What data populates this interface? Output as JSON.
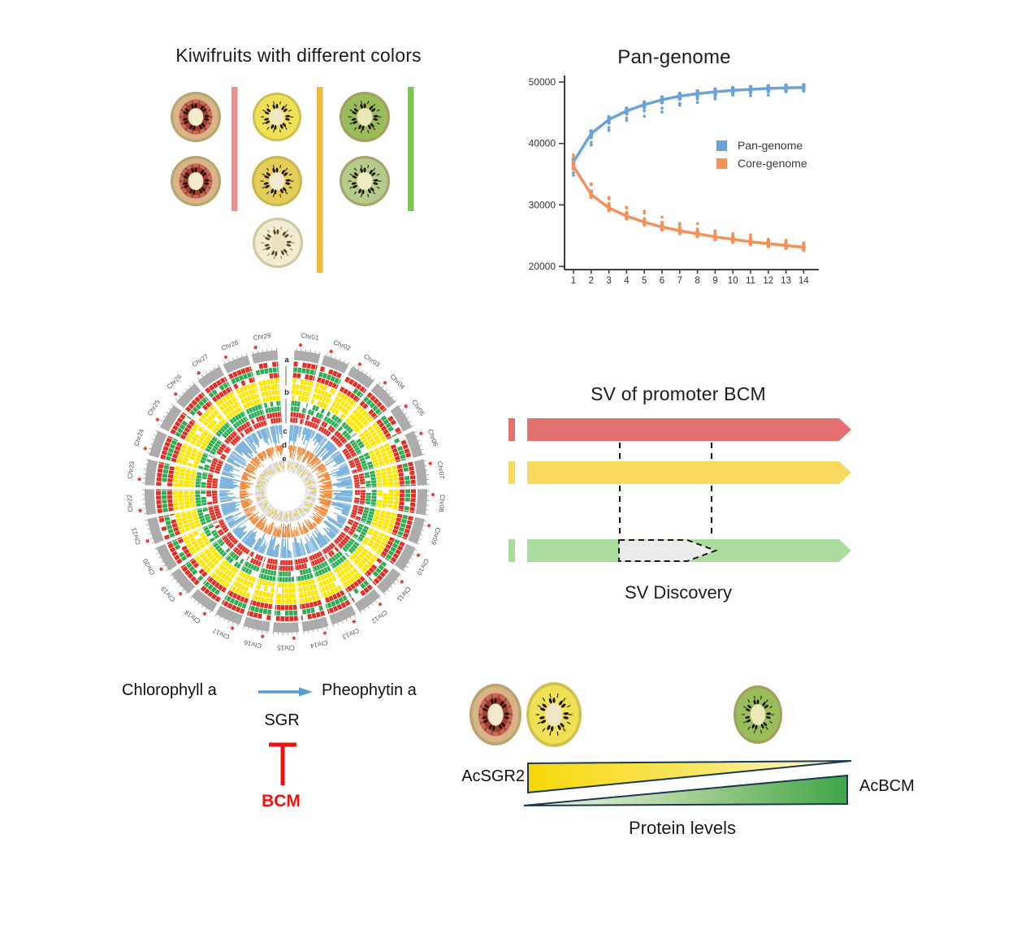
{
  "kiwifruit_panel": {
    "title": "Kiwifruits with different colors",
    "groups": [
      {
        "name": "red-fleshed",
        "bar_color": "#ED8E8E",
        "fruit_count": 2
      },
      {
        "name": "yellow-fleshed",
        "bar_color": "#EDB93F",
        "fruit_count": 3
      },
      {
        "name": "green-fleshed",
        "bar_color": "#7DC356",
        "fruit_count": 2
      }
    ]
  },
  "chart_data": {
    "type": "line",
    "title": "Pan-genome",
    "x": [
      1,
      2,
      3,
      4,
      5,
      6,
      7,
      8,
      9,
      10,
      11,
      12,
      13,
      14
    ],
    "series": [
      {
        "name": "Pan-genome",
        "color": "#6AA3D8",
        "values": [
          37000,
          41600,
          43900,
          45300,
          46300,
          47100,
          47700,
          48100,
          48400,
          48650,
          48800,
          48950,
          49050,
          49100
        ]
      },
      {
        "name": "Core-genome",
        "color": "#F2915A",
        "values": [
          36300,
          31700,
          29500,
          28200,
          27200,
          26400,
          25800,
          25300,
          24800,
          24400,
          24000,
          23700,
          23400,
          23100
        ]
      }
    ],
    "xlabel": "",
    "ylabel": "",
    "ylim": [
      20000,
      50000
    ],
    "yticks": [
      20000,
      30000,
      40000,
      50000
    ],
    "xticks": [
      1,
      2,
      3,
      4,
      5,
      6,
      7,
      8,
      9,
      10,
      11,
      12,
      13,
      14
    ],
    "legend_position": "middle-right",
    "grid": false
  },
  "circos_panel": {
    "track_labels": [
      "a",
      "b",
      "c",
      "d",
      "e"
    ],
    "chromosomes": [
      "Chr01",
      "Chr02",
      "Chr03",
      "Chr04",
      "Chr05",
      "Chr06",
      "Chr07",
      "Chr08",
      "Chr09",
      "Chr10",
      "Chr11",
      "Chr12",
      "Chr13",
      "Chr14",
      "Chr15",
      "Chr16",
      "Chr17",
      "Chr18",
      "Chr19",
      "Chr20",
      "Chr21",
      "Chr22",
      "Chr23",
      "Chr24",
      "Chr25",
      "Chr26",
      "Chr27",
      "Chr28",
      "Chr29"
    ],
    "ring_order_outer_to_inner": [
      "red",
      "green",
      "red",
      "yellow",
      "yellow",
      "yellow",
      "yellow",
      "green",
      "green",
      "red",
      "red"
    ],
    "palette": {
      "chromosome_gray": "#ACACAC",
      "red": "#E42D23",
      "green": "#2BAE54",
      "yellow": "#FFE600",
      "track_c_blue": "#72AED9",
      "track_c_blue_light": "#9DC7E6",
      "track_d_orange": "#EF8330",
      "track_d_orange_light": "#F6AA70",
      "track_e_purple": "#B4ACCD",
      "speckle_yellow": "#DECF2A",
      "marker_star_red": "#E32222"
    }
  },
  "sv_panel": {
    "title": "SV of promoter BCM",
    "caption": "SV Discovery",
    "haplotypes": [
      {
        "name": "red-haplotype",
        "color": "#E57070",
        "has_sv": false
      },
      {
        "name": "yellow-haplotype",
        "color": "#F8DB5E",
        "has_sv": false
      },
      {
        "name": "green-haplotype",
        "color": "#AADC9E",
        "has_sv": true
      }
    ],
    "sv_fill": "#EBEBEB"
  },
  "pathway_panel": {
    "substrate": "Chlorophyll a",
    "product": "Pheophytin a",
    "enzyme": "SGR",
    "inhibitor": "BCM",
    "arrow_color": "#5B9BD5",
    "inhibit_color": "#EE1111"
  },
  "protein_panel": {
    "left_label": "AcSGR2",
    "right_label": "AcBCM",
    "caption": "Protein levels",
    "sgr2_gradient": [
      "#F7D70A",
      "#FDF8D8"
    ],
    "bcm_gradient": [
      "#F2F8EE",
      "#3FA546"
    ],
    "outline_color": "#1B3A4E"
  }
}
